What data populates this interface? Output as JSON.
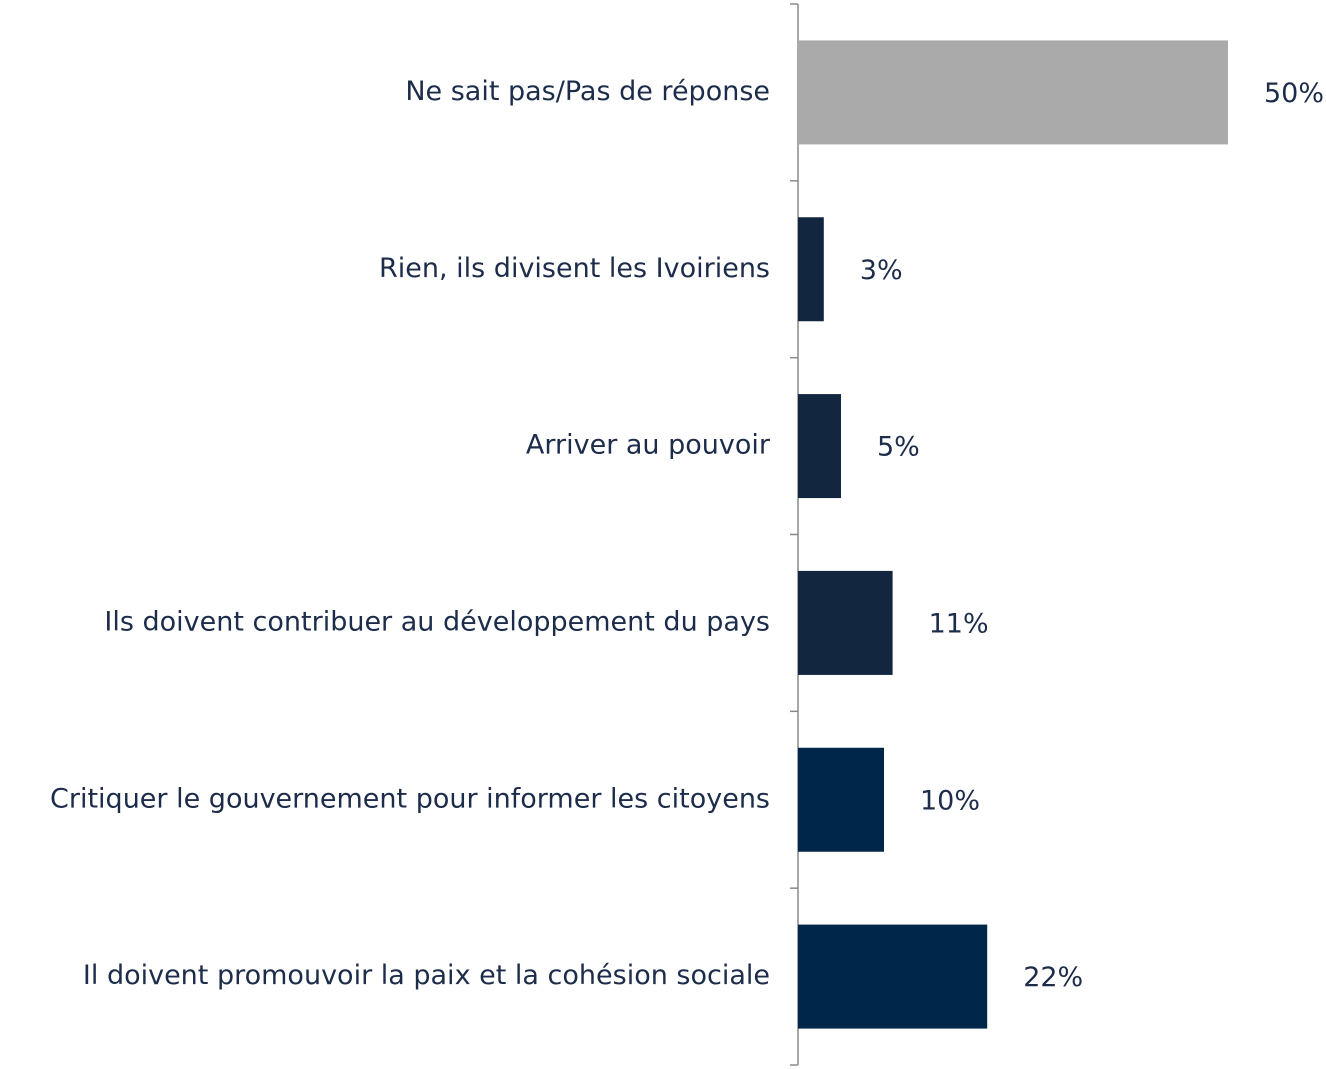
{
  "chart_data": {
    "type": "bar",
    "orientation": "horizontal",
    "categories": [
      "Ne sait pas/Pas de réponse",
      "Rien, ils divisent les Ivoiriens",
      "Arriver au pouvoir",
      "Ils doivent contribuer au développement du pays",
      "Critiquer le gouvernement pour informer les citoyens",
      "Il doivent promouvoir la paix et la cohésion sociale"
    ],
    "values": [
      50,
      3,
      5,
      11,
      10,
      22
    ],
    "value_labels": [
      "50%",
      "3%",
      "5%",
      "11%",
      "10%",
      "22%"
    ],
    "colors": [
      "#aaaaab",
      "#13263f",
      "#13263f",
      "#13263f",
      "#00264a",
      "#00264a"
    ]
  }
}
